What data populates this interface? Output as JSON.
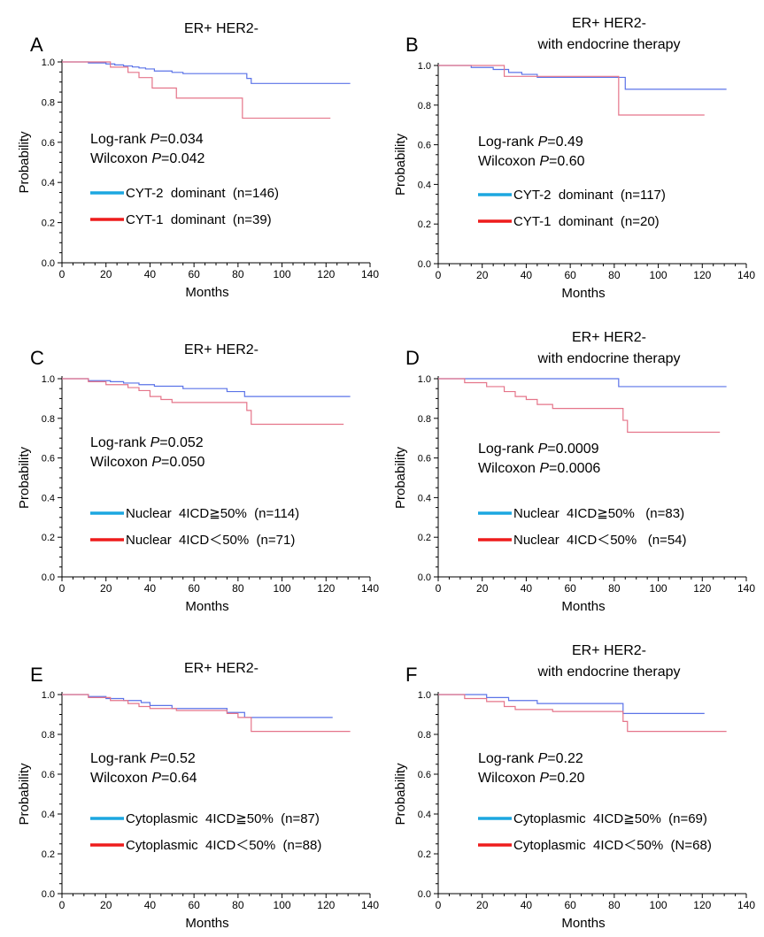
{
  "colors": {
    "blue": "#5b73e8",
    "red": "#e5758a",
    "legend_blue": "#1ca7e0",
    "legend_red": "#ee1c1c"
  },
  "chart_data": [
    {
      "panel": "A",
      "title": "ER+ HER2-",
      "subtitle": "",
      "type": "line",
      "step": true,
      "xlabel": "Months",
      "ylabel": "Probability",
      "xlim": [
        0,
        140
      ],
      "ylim": [
        0,
        1.0
      ],
      "xticks": [
        "0",
        "20",
        "40",
        "60",
        "80",
        "100",
        "120",
        "140"
      ],
      "yticks": [
        "0.0",
        "0.2",
        "0.4",
        "0.6",
        "0.8",
        "1.0"
      ],
      "stats": [
        {
          "prefix": "Log-rank ",
          "italic": "P",
          "value": "=0.034"
        },
        {
          "prefix": "Wilcoxon ",
          "italic": "P",
          "value": "=0.042"
        }
      ],
      "series": [
        {
          "name": "CYT-2  dominant  (n=146)",
          "color": "blue",
          "x": [
            0,
            12,
            20,
            24,
            28,
            32,
            35,
            38,
            42,
            50,
            55,
            84,
            86,
            131
          ],
          "y": [
            1.0,
            0.995,
            0.99,
            0.985,
            0.98,
            0.975,
            0.97,
            0.965,
            0.955,
            0.948,
            0.942,
            0.918,
            0.893,
            0.893
          ]
        },
        {
          "name": "CYT-1  dominant  (n=39)",
          "color": "red",
          "x": [
            0,
            22,
            30,
            35,
            41,
            52,
            82,
            122
          ],
          "y": [
            1.0,
            0.974,
            0.948,
            0.922,
            0.87,
            0.82,
            0.72,
            0.72
          ]
        }
      ]
    },
    {
      "panel": "B",
      "title": "ER+ HER2-",
      "subtitle": "with endocrine therapy",
      "type": "line",
      "step": true,
      "xlabel": "Months",
      "ylabel": "Probability",
      "xlim": [
        0,
        140
      ],
      "ylim": [
        0,
        1.0
      ],
      "xticks": [
        "0",
        "20",
        "40",
        "60",
        "80",
        "100",
        "120",
        "140"
      ],
      "yticks": [
        "0.0",
        "0.2",
        "0.4",
        "0.6",
        "0.8",
        "1.0"
      ],
      "stats": [
        {
          "prefix": "Log-rank ",
          "italic": "P",
          "value": "=0.49"
        },
        {
          "prefix": "Wilcoxon ",
          "italic": "P",
          "value": "=0.60"
        }
      ],
      "series": [
        {
          "name": "CYT-2  dominant  (n=117)",
          "color": "blue",
          "x": [
            0,
            15,
            25,
            32,
            38,
            45,
            85,
            131
          ],
          "y": [
            1.0,
            0.99,
            0.98,
            0.965,
            0.955,
            0.94,
            0.88,
            0.88
          ]
        },
        {
          "name": "CYT-1  dominant  (n=20)",
          "color": "red",
          "x": [
            0,
            30,
            82,
            121
          ],
          "y": [
            1.0,
            0.945,
            0.75,
            0.75
          ]
        }
      ]
    },
    {
      "panel": "C",
      "title": "ER+ HER2-",
      "subtitle": "",
      "type": "line",
      "step": true,
      "xlabel": "Months",
      "ylabel": "Probability",
      "xlim": [
        0,
        140
      ],
      "ylim": [
        0,
        1.0
      ],
      "xticks": [
        "0",
        "20",
        "40",
        "60",
        "80",
        "100",
        "120",
        "140"
      ],
      "yticks": [
        "0.0",
        "0.2",
        "0.4",
        "0.6",
        "0.8",
        "1.0"
      ],
      "stats": [
        {
          "prefix": "Log-rank ",
          "italic": "P",
          "value": "=0.052"
        },
        {
          "prefix": "Wilcoxon ",
          "italic": "P",
          "value": "=0.050"
        }
      ],
      "series": [
        {
          "name": "Nuclear  4ICD≧50%  (n=114)",
          "color": "blue",
          "x": [
            0,
            12,
            22,
            28,
            35,
            42,
            55,
            75,
            83,
            131
          ],
          "y": [
            1.0,
            0.99,
            0.985,
            0.978,
            0.97,
            0.962,
            0.95,
            0.935,
            0.91,
            0.91
          ]
        },
        {
          "name": "Nuclear  4ICD＜50%  (n=71)",
          "color": "red",
          "x": [
            0,
            12,
            20,
            30,
            35,
            40,
            45,
            50,
            84,
            86,
            128
          ],
          "y": [
            1.0,
            0.985,
            0.97,
            0.955,
            0.94,
            0.91,
            0.895,
            0.88,
            0.84,
            0.77,
            0.77
          ]
        }
      ]
    },
    {
      "panel": "D",
      "title": "ER+ HER2-",
      "subtitle": "with endocrine therapy",
      "type": "line",
      "step": true,
      "xlabel": "Months",
      "ylabel": "Probability",
      "xlim": [
        0,
        140
      ],
      "ylim": [
        0,
        1.0
      ],
      "xticks": [
        "0",
        "20",
        "40",
        "60",
        "80",
        "100",
        "120",
        "140"
      ],
      "yticks": [
        "0.0",
        "0.2",
        "0.4",
        "0.6",
        "0.8",
        "1.0"
      ],
      "stats": [
        {
          "prefix": "Log-rank ",
          "italic": "P",
          "value": "=0.0009"
        },
        {
          "prefix": "Wilcoxon ",
          "italic": "P",
          "value": "=0.0006"
        }
      ],
      "series": [
        {
          "name": "Nuclear  4ICD≧50%   (n=83)",
          "color": "blue",
          "x": [
            0,
            82,
            131
          ],
          "y": [
            1.0,
            0.96,
            0.96
          ]
        },
        {
          "name": "Nuclear  4ICD＜50%   (n=54)",
          "color": "red",
          "x": [
            0,
            12,
            22,
            30,
            35,
            40,
            45,
            52,
            84,
            86,
            128
          ],
          "y": [
            1.0,
            0.98,
            0.96,
            0.935,
            0.91,
            0.895,
            0.87,
            0.85,
            0.79,
            0.73,
            0.73
          ]
        }
      ]
    },
    {
      "panel": "E",
      "title": "ER+ HER2-",
      "subtitle": "",
      "type": "line",
      "step": true,
      "xlabel": "Months",
      "ylabel": "Probability",
      "xlim": [
        0,
        140
      ],
      "ylim": [
        0,
        1.0
      ],
      "xticks": [
        "0",
        "20",
        "40",
        "60",
        "80",
        "100",
        "120",
        "140"
      ],
      "yticks": [
        "0.0",
        "0.2",
        "0.4",
        "0.6",
        "0.8",
        "1.0"
      ],
      "stats": [
        {
          "prefix": "Log-rank ",
          "italic": "P",
          "value": "=0.52"
        },
        {
          "prefix": "Wilcoxon ",
          "italic": "P",
          "value": "=0.64"
        }
      ],
      "series": [
        {
          "name": "Cytoplasmic  4ICD≧50%  (n=87)",
          "color": "blue",
          "x": [
            0,
            12,
            20,
            28,
            36,
            40,
            50,
            75,
            83,
            123
          ],
          "y": [
            1.0,
            0.99,
            0.98,
            0.97,
            0.96,
            0.945,
            0.93,
            0.91,
            0.885,
            0.885
          ]
        },
        {
          "name": "Cytoplasmic  4ICD＜50%  (n=88)",
          "color": "red",
          "x": [
            0,
            12,
            22,
            30,
            35,
            40,
            52,
            75,
            80,
            86,
            131
          ],
          "y": [
            1.0,
            0.985,
            0.97,
            0.955,
            0.94,
            0.93,
            0.92,
            0.905,
            0.885,
            0.815,
            0.815
          ]
        }
      ]
    },
    {
      "panel": "F",
      "title": "ER+ HER2-",
      "subtitle": "with endocrine therapy",
      "type": "line",
      "step": true,
      "xlabel": "Months",
      "ylabel": "Probability",
      "xlim": [
        0,
        140
      ],
      "ylim": [
        0,
        1.0
      ],
      "xticks": [
        "0",
        "20",
        "40",
        "60",
        "80",
        "100",
        "120",
        "140"
      ],
      "yticks": [
        "0.0",
        "0.2",
        "0.4",
        "0.6",
        "0.8",
        "1.0"
      ],
      "stats": [
        {
          "prefix": "Log-rank ",
          "italic": "P",
          "value": "=0.22"
        },
        {
          "prefix": "Wilcoxon ",
          "italic": "P",
          "value": "=0.20"
        }
      ],
      "series": [
        {
          "name": "Cytoplasmic  4ICD≧50%  (n=69)",
          "color": "blue",
          "x": [
            0,
            22,
            32,
            45,
            84,
            121
          ],
          "y": [
            1.0,
            0.985,
            0.97,
            0.955,
            0.905,
            0.905
          ]
        },
        {
          "name": "Cytoplasmic  4ICD＜50%  (N=68)",
          "color": "red",
          "x": [
            0,
            12,
            22,
            30,
            35,
            52,
            84,
            86,
            131
          ],
          "y": [
            1.0,
            0.98,
            0.965,
            0.94,
            0.925,
            0.915,
            0.865,
            0.815,
            0.815
          ]
        }
      ]
    }
  ]
}
